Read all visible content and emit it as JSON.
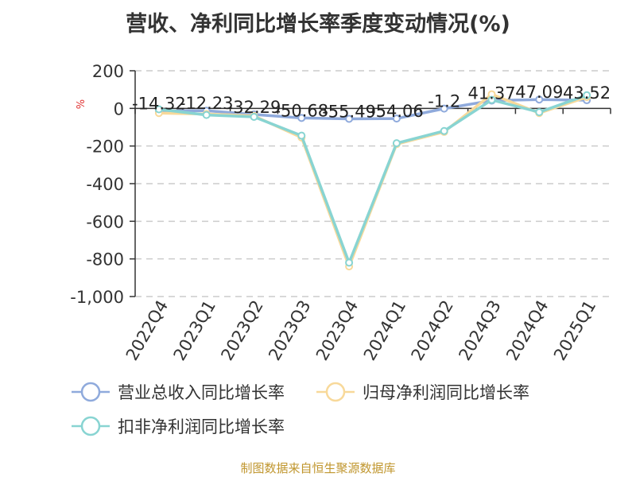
{
  "chart_data": {
    "type": "line",
    "title": "营收、净利同比增长率季度变动情况(%)",
    "ylabel": "%",
    "ylim": [
      -1000,
      200
    ],
    "yticks": [
      200,
      0,
      -200,
      -400,
      -600,
      -800,
      -1000
    ],
    "ytick_labels": [
      "200",
      "0",
      "-200",
      "-400",
      "-600",
      "-800",
      "-1,000"
    ],
    "grid": true,
    "legend_position": "bottom",
    "categories": [
      "2022Q4",
      "2023Q1",
      "2023Q2",
      "2023Q3",
      "2023Q4",
      "2024Q1",
      "2024Q2",
      "2024Q3",
      "2024Q4",
      "2025Q1"
    ],
    "series": [
      {
        "name": "营业总收入同比增长率",
        "values": [
          -14.32,
          -12.23,
          -32.29,
          -50.68,
          -55.49,
          -54.06,
          -1.2,
          41.37,
          47.09,
          43.52
        ],
        "color": "#8faadc",
        "labels": [
          "-14.32",
          "-12.23",
          "-32.29",
          "-50.68",
          "-55.49",
          "-54.06",
          "-1.2",
          "41.37",
          "47.09",
          "43.52"
        ]
      },
      {
        "name": "归母净利润同比增长率",
        "values": [
          -25,
          -30,
          -40,
          -155,
          -840,
          -190,
          -125,
          75,
          -25,
          60
        ],
        "color": "#f8d99a"
      },
      {
        "name": "扣非净利润同比增长率",
        "values": [
          -5,
          -35,
          -45,
          -145,
          -820,
          -185,
          -120,
          45,
          -20,
          70
        ],
        "color": "#88d4d2"
      }
    ]
  },
  "footer": {
    "source": "制图数据来自恒生聚源数据库"
  }
}
